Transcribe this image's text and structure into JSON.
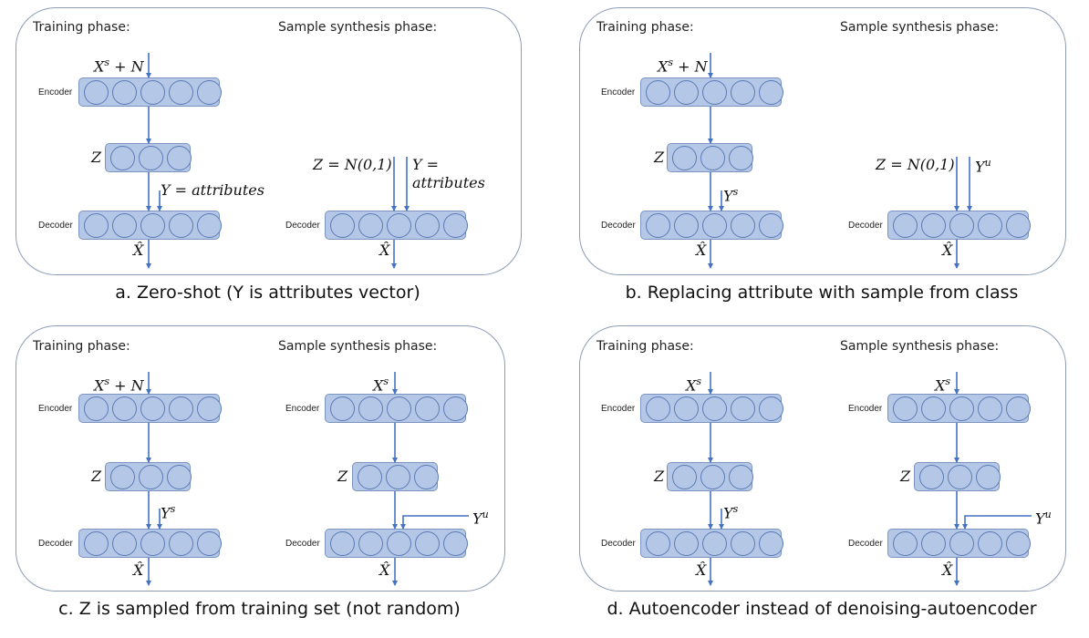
{
  "colors": {
    "layer_fill": "#b4c7e7",
    "arrow": "#4472c4",
    "panel_border": "#8d9bb7"
  },
  "panels": [
    {
      "caption": "a. Zero-shot (Y is attributes vector)",
      "training_title": "Training phase:",
      "synthesis_title": "Sample synthesis phase:",
      "encoder_label": "Encoder",
      "decoder_label": "Decoder",
      "train_input": "X",
      "train_input_sup": "s",
      "train_input_tail": " + N",
      "z": "Z",
      "train_cond": "Y = attributes",
      "output": "X̂",
      "syn_z": "Z = N(0,1)",
      "syn_cond_line1": "Y =",
      "syn_cond_line2": "attributes"
    },
    {
      "caption": "b. Replacing attribute with sample from class",
      "training_title": "Training phase:",
      "synthesis_title": "Sample synthesis phase:",
      "encoder_label": "Encoder",
      "decoder_label": "Decoder",
      "train_input": "X",
      "train_input_sup": "s",
      "train_input_tail": " + N",
      "z": "Z",
      "train_cond": "Y",
      "train_cond_sup": "s",
      "output": "X̂",
      "syn_z": "Z = N(0,1)",
      "syn_cond": "Y",
      "syn_cond_sup": "u"
    },
    {
      "caption": "c. Z is sampled from training set (not random)",
      "training_title": "Training phase:",
      "synthesis_title": "Sample synthesis phase:",
      "encoder_label": "Encoder",
      "decoder_label": "Decoder",
      "train_input": "X",
      "train_input_sup": "s",
      "train_input_tail": " + N",
      "z": "Z",
      "train_cond": "Y",
      "train_cond_sup": "s",
      "output": "X̂",
      "syn_input": "X",
      "syn_input_sup": "s",
      "syn_cond": "Y",
      "syn_cond_sup": "u"
    },
    {
      "caption": "d. Autoencoder instead of denoising-autoencoder",
      "training_title": "Training phase:",
      "synthesis_title": "Sample synthesis phase:",
      "encoder_label": "Encoder",
      "decoder_label": "Decoder",
      "train_input": "X",
      "train_input_sup": "s",
      "z": "Z",
      "train_cond": "Y",
      "train_cond_sup": "s",
      "output": "X̂",
      "syn_input": "X",
      "syn_input_sup": "s",
      "syn_cond": "Y",
      "syn_cond_sup": "u"
    }
  ]
}
